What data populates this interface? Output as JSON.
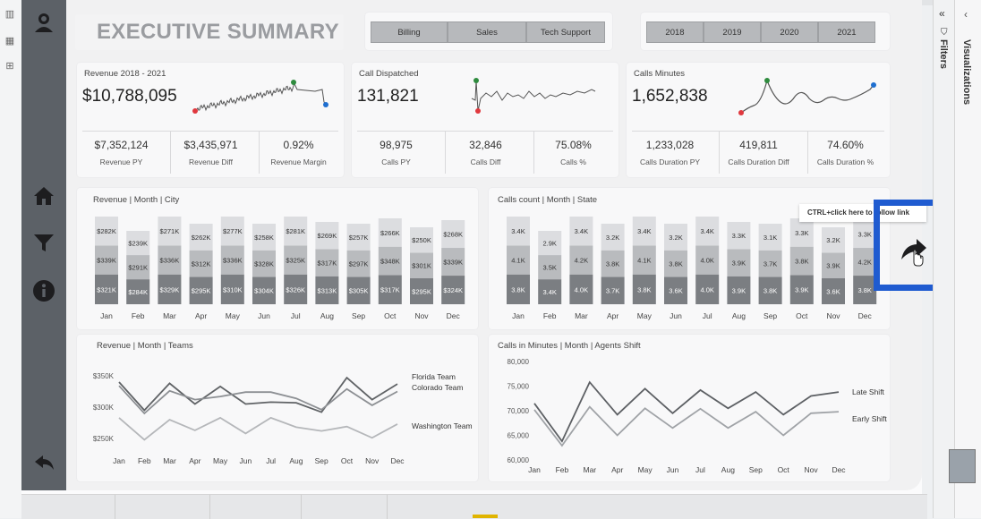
{
  "page": {
    "title": "EXECUTIVE SUMMARY"
  },
  "filters": {
    "categories": [
      "Billing",
      "Sales",
      "Tech Support"
    ],
    "years": [
      "2018",
      "2019",
      "2020",
      "2021"
    ]
  },
  "kpis": [
    {
      "title": "Revenue 2018 - 2021",
      "value": "$10,788,095",
      "subs": [
        {
          "value": "$7,352,124",
          "label": "Revenue PY"
        },
        {
          "value": "$3,435,971",
          "label": "Revenue Diff"
        },
        {
          "value": "0.92%",
          "label": "Revenue Margin"
        }
      ]
    },
    {
      "title": "Call Dispatched",
      "value": "131,821",
      "subs": [
        {
          "value": "98,975",
          "label": "Calls PY"
        },
        {
          "value": "32,846",
          "label": "Calls Diff"
        },
        {
          "value": "75.08%",
          "label": "Calls %"
        }
      ]
    },
    {
      "title": "Calls Minutes",
      "value": "1,652,838",
      "subs": [
        {
          "value": "1,233,028",
          "label": "Calls Duration PY"
        },
        {
          "value": "419,811",
          "label": "Calls Duration Diff"
        },
        {
          "value": "74.60%",
          "label": "Calls Duration %"
        }
      ]
    }
  ],
  "tooltip": {
    "text": "CTRL+click here to follow link"
  },
  "panes": {
    "filters": "Filters",
    "visualizations": "Visualizations"
  },
  "colors": {
    "nav": "#5c6167",
    "highlight": "#1f5bd0",
    "spark_max": "#2e8b3e",
    "spark_min": "#e0383e",
    "spark_last": "#1f6fd0"
  },
  "icons": [
    "home-icon",
    "filter-icon",
    "info-icon",
    "back-arrow-icon",
    "share-arrow-icon",
    "user-icon"
  ],
  "chart_data": [
    {
      "type": "bar",
      "title": "Revenue | Month | City",
      "categories": [
        "Jan",
        "Feb",
        "Mar",
        "Apr",
        "May",
        "Jun",
        "Jul",
        "Aug",
        "Sep",
        "Oct",
        "Nov",
        "Dec"
      ],
      "series": [
        {
          "name": "",
          "values": [
            "$321K",
            "$284K",
            "$329K",
            "$295K",
            "$310K",
            "$304K",
            "$326K",
            "$313K",
            "$305K",
            "$317K",
            "$295K",
            "$324K"
          ]
        },
        {
          "name": "",
          "values": [
            "$339K",
            "$291K",
            "$336K",
            "$312K",
            "$336K",
            "$328K",
            "$325K",
            "$317K",
            "$297K",
            "$348K",
            "$301K",
            "$339K"
          ]
        },
        {
          "name": "",
          "values": [
            "$282K",
            "$239K",
            "$271K",
            "$262K",
            "$277K",
            "$258K",
            "$281K",
            "$269K",
            "$257K",
            "$266K",
            "$250K",
            "$268K"
          ]
        }
      ]
    },
    {
      "type": "bar",
      "title": "Calls count | Month | State",
      "categories": [
        "Jan",
        "Feb",
        "Mar",
        "Apr",
        "May",
        "Jun",
        "Jul",
        "Aug",
        "Sep",
        "Oct",
        "Nov",
        "Dec"
      ],
      "series": [
        {
          "name": "",
          "values": [
            "3.8K",
            "3.4K",
            "4.0K",
            "3.7K",
            "3.8K",
            "3.6K",
            "4.0K",
            "3.9K",
            "3.8K",
            "3.9K",
            "3.6K",
            "3.8K"
          ]
        },
        {
          "name": "",
          "values": [
            "4.1K",
            "3.5K",
            "4.2K",
            "3.8K",
            "4.1K",
            "3.8K",
            "4.0K",
            "3.9K",
            "3.7K",
            "3.8K",
            "3.9K",
            "4.2K"
          ]
        },
        {
          "name": "",
          "values": [
            "3.4K",
            "2.9K",
            "3.4K",
            "3.2K",
            "3.4K",
            "3.2K",
            "3.4K",
            "3.3K",
            "3.1K",
            "3.3K",
            "3.2K",
            "3.3K"
          ]
        }
      ]
    },
    {
      "type": "line",
      "title": "Revenue | Month | Teams",
      "categories": [
        "Jan",
        "Feb",
        "Mar",
        "Apr",
        "May",
        "Jun",
        "Jul",
        "Aug",
        "Sep",
        "Oct",
        "Nov",
        "Dec"
      ],
      "yticks": [
        "$350K",
        "$300K",
        "$250K"
      ],
      "ylim": [
        230,
        370
      ],
      "series": [
        {
          "name": "Florida Team",
          "values": [
            340,
            295,
            338,
            305,
            333,
            305,
            308,
            307,
            292,
            347,
            312,
            337
          ]
        },
        {
          "name": "Colorado Team",
          "values": [
            334,
            290,
            326,
            312,
            317,
            324,
            324,
            314,
            296,
            329,
            303,
            325
          ]
        },
        {
          "name": "Washington Team",
          "values": [
            283,
            248,
            280,
            263,
            283,
            258,
            283,
            268,
            262,
            269,
            251,
            273
          ]
        }
      ]
    },
    {
      "type": "line",
      "title": "Calls in Minutes | Month | Agents Shift",
      "categories": [
        "Jan",
        "Feb",
        "Mar",
        "Apr",
        "May",
        "Jun",
        "Jul",
        "Aug",
        "Sep",
        "Oct",
        "Nov",
        "Dec"
      ],
      "yticks": [
        "80,000",
        "75,000",
        "70,000",
        "65,000",
        "60,000"
      ],
      "ylim": [
        60000,
        80000
      ],
      "series": [
        {
          "name": "Late Shift",
          "values": [
            71500,
            63800,
            75800,
            69200,
            74500,
            69500,
            74200,
            70500,
            73800,
            69200,
            73000,
            73800
          ]
        },
        {
          "name": "Early Shift",
          "values": [
            70200,
            62900,
            70800,
            65000,
            70500,
            66500,
            70400,
            66500,
            69800,
            65000,
            69500,
            69800
          ]
        }
      ]
    }
  ]
}
